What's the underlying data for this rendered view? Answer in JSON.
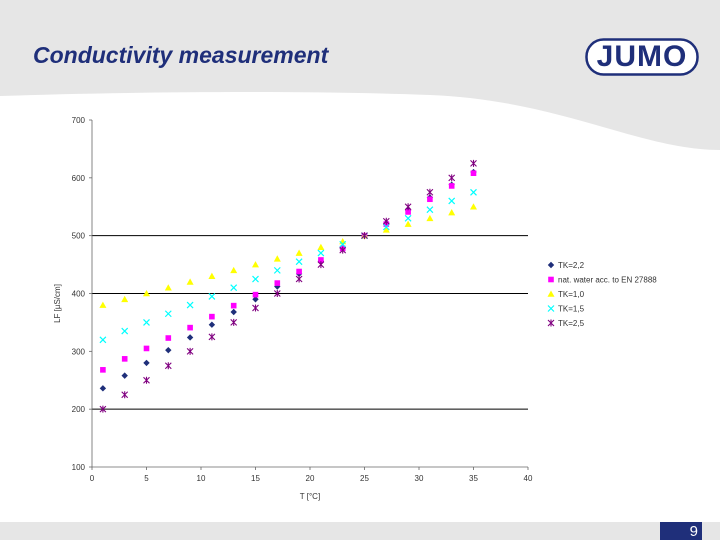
{
  "slide": {
    "title": "Conductivity measurement",
    "logo_text": "JUMO",
    "page_number": "9",
    "accent_color": "#1f2f7a"
  },
  "chart_data": {
    "type": "scatter",
    "title": "",
    "xlabel": "T [°C]",
    "ylabel": "LF [µS/cm]",
    "xlim": [
      0,
      40
    ],
    "ylim": [
      100,
      700
    ],
    "x_ticks": [
      "0",
      "5",
      "10",
      "15",
      "20",
      "25",
      "30",
      "35",
      "40"
    ],
    "y_ticks": [
      "100",
      "200",
      "300",
      "400",
      "500",
      "600",
      "700"
    ],
    "grid": "horizontal at 200, 400, 500",
    "legend_position": "right",
    "series": [
      {
        "name": "TK=2,2",
        "color": "#1f2f7a",
        "marker": "diamond",
        "x": [
          1,
          3,
          5,
          7,
          9,
          11,
          13,
          15,
          17,
          19,
          21,
          23,
          25,
          27,
          29,
          31,
          33,
          35
        ],
        "y": [
          236,
          258,
          280,
          302,
          324,
          346,
          368,
          390,
          412,
          434,
          456,
          478,
          500,
          522,
          544,
          566,
          588,
          610
        ]
      },
      {
        "name": "nat. water acc. to EN 27888",
        "color": "#ff00ff",
        "marker": "square",
        "x": [
          1,
          3,
          5,
          7,
          9,
          11,
          13,
          15,
          17,
          19,
          21,
          23,
          25,
          27,
          29,
          31,
          33,
          35
        ],
        "y": [
          268,
          287,
          305,
          323,
          341,
          360,
          379,
          398,
          418,
          438,
          458,
          478,
          500,
          520,
          541,
          563,
          586,
          608
        ]
      },
      {
        "name": "TK=1,0",
        "color": "#ffff00",
        "marker": "triangle",
        "x": [
          1,
          3,
          5,
          7,
          9,
          11,
          13,
          15,
          17,
          19,
          21,
          23,
          25,
          27,
          29,
          31,
          33,
          35
        ],
        "y": [
          380,
          390,
          400,
          410,
          420,
          430,
          440,
          450,
          460,
          470,
          480,
          490,
          500,
          510,
          520,
          530,
          540,
          550
        ]
      },
      {
        "name": "TK=1,5",
        "color": "#00ffff",
        "marker": "x",
        "x": [
          1,
          3,
          5,
          7,
          9,
          11,
          13,
          15,
          17,
          19,
          21,
          23,
          25,
          27,
          29,
          31,
          33,
          35
        ],
        "y": [
          320,
          335,
          350,
          365,
          380,
          395,
          410,
          425,
          440,
          455,
          470,
          485,
          500,
          515,
          530,
          545,
          560,
          575
        ]
      },
      {
        "name": "TK=2,5",
        "color": "#800080",
        "marker": "star",
        "x": [
          1,
          3,
          5,
          7,
          9,
          11,
          13,
          15,
          17,
          19,
          21,
          23,
          25,
          27,
          29,
          31,
          33,
          35
        ],
        "y": [
          200,
          225,
          250,
          275,
          300,
          325,
          350,
          375,
          400,
          425,
          450,
          475,
          500,
          525,
          550,
          575,
          600,
          625
        ]
      }
    ]
  }
}
